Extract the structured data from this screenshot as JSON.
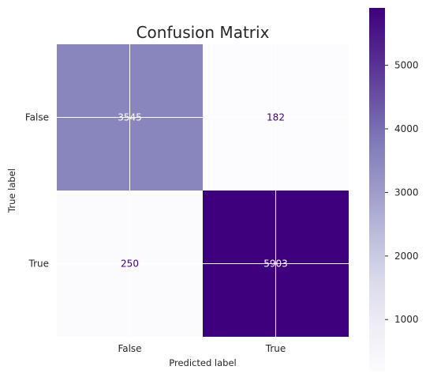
{
  "chart_data": {
    "type": "heatmap",
    "title": "Confusion Matrix",
    "xlabel": "Predicted label",
    "ylabel": "True label",
    "x_categories": [
      "False",
      "True"
    ],
    "y_categories": [
      "False",
      "True"
    ],
    "values": [
      [
        3545,
        182
      ],
      [
        250,
        5903
      ]
    ],
    "colormap": "Purples",
    "grid": true,
    "colorbar": {
      "range": [
        182,
        5903
      ],
      "ticks": [
        1000,
        2000,
        3000,
        4000,
        5000
      ],
      "tick_labels": [
        "1000",
        "2000",
        "3000",
        "4000",
        "5000"
      ]
    }
  },
  "colors": {
    "low": "#fcfbfd",
    "high": "#3f007d",
    "text_on_light": "#3f007d",
    "text_on_dark": "#ffffff"
  }
}
